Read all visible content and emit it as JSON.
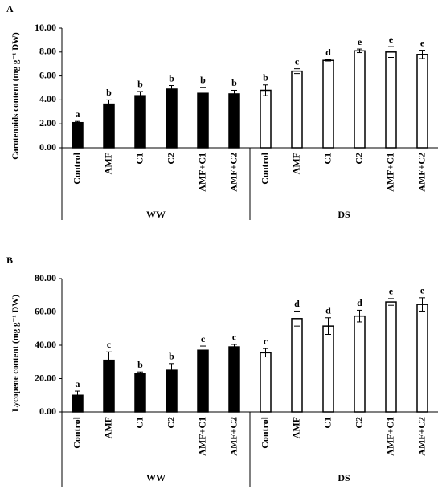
{
  "chart_data": [
    {
      "type": "bar",
      "panel": "A",
      "ylabel": "Carotenoids content  (mg g⁻¹ DW)",
      "categories": [
        "Control",
        "AMF",
        "C1",
        "C2",
        "AMF+C1",
        "AMF+C2"
      ],
      "ylim": [
        0,
        10
      ],
      "yticks": [
        {
          "value": 0,
          "label": "0.00"
        },
        {
          "value": 2,
          "label": "2.00"
        },
        {
          "value": 4,
          "label": "4.00"
        },
        {
          "value": 6,
          "label": "6.00"
        },
        {
          "value": 8,
          "label": "8.00"
        },
        {
          "value": 10,
          "label": "10.00"
        }
      ],
      "series": [
        {
          "name": "WW",
          "color": "#000000",
          "fill": "#000000",
          "values": [
            2.1,
            3.65,
            4.35,
            4.9,
            4.55,
            4.5
          ],
          "errors": [
            0.1,
            0.35,
            0.35,
            0.3,
            0.5,
            0.3
          ],
          "labels": [
            "a",
            "b",
            "b",
            "b",
            "b",
            "b"
          ]
        },
        {
          "name": "DS",
          "color": "#000000",
          "fill": "#ffffff",
          "values": [
            4.8,
            6.4,
            7.3,
            8.1,
            8.0,
            7.8
          ],
          "errors": [
            0.45,
            0.2,
            0.05,
            0.15,
            0.45,
            0.35
          ],
          "labels": [
            "b",
            "c",
            "d",
            "e",
            "e",
            "e"
          ]
        }
      ]
    },
    {
      "type": "bar",
      "panel": "B",
      "ylabel": "Lycopene content  (mg g⁻¹ DW)",
      "categories": [
        "Control",
        "AMF",
        "C1",
        "C2",
        "AMF+C1",
        "AMF+C2"
      ],
      "ylim": [
        0,
        80
      ],
      "yticks": [
        {
          "value": 0,
          "label": "0.00"
        },
        {
          "value": 20,
          "label": "20.00"
        },
        {
          "value": 40,
          "label": "40.00"
        },
        {
          "value": 60,
          "label": "60.00"
        },
        {
          "value": 80,
          "label": "80.00"
        }
      ],
      "series": [
        {
          "name": "WW",
          "color": "#000000",
          "fill": "#000000",
          "values": [
            10,
            31,
            23,
            25,
            37,
            39
          ],
          "errors": [
            2.5,
            5,
            1,
            4,
            2.5,
            1.5
          ],
          "labels": [
            "a",
            "c",
            "b",
            "b",
            "c",
            "c"
          ]
        },
        {
          "name": "DS",
          "color": "#000000",
          "fill": "#ffffff",
          "values": [
            35.5,
            56,
            51.5,
            57.5,
            66,
            64.5
          ],
          "errors": [
            2.5,
            4.5,
            5,
            3.5,
            2,
            4
          ],
          "labels": [
            "c",
            "d",
            "d",
            "d",
            "e",
            "e"
          ]
        }
      ]
    }
  ]
}
